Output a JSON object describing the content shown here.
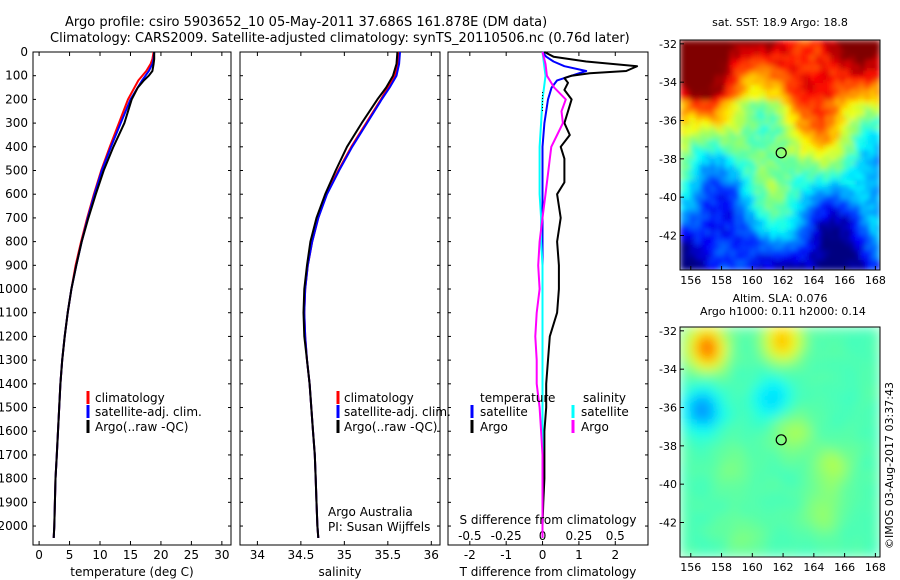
{
  "header": {
    "title_line1": "Argo profile: csiro 5903652_10 05-May-2011 37.686S 161.878E (DM data)",
    "title_line2": "Climatology: CARS2009. Satellite-adjusted climatology: synTS_20110506.nc (0.76d later)"
  },
  "footer": {
    "credit": "Argo Australia",
    "pi": "PI: Susan Wijffels",
    "stamp": "©IMOS 03-Aug-2017 03:37:43"
  },
  "colors": {
    "climatology": "#ff0000",
    "satellite": "#0000ff",
    "argo": "#000000",
    "salinity_satellite": "#00ffff",
    "salinity_argo": "#ff00ff"
  },
  "chart_data": [
    {
      "id": "temperature",
      "type": "line",
      "xlabel": "temperature (deg C)",
      "ylabel": "",
      "xlim": [
        -1,
        31.5
      ],
      "ylim": [
        0,
        2080
      ],
      "y_inverted": true,
      "xticks": [
        0,
        5,
        10,
        15,
        20,
        25,
        30
      ],
      "xtick_labels": [
        "0",
        "5",
        "10",
        "15",
        "20",
        "25",
        "30"
      ],
      "yticks": [
        0,
        100,
        200,
        300,
        400,
        500,
        600,
        700,
        800,
        900,
        1000,
        1100,
        1200,
        1300,
        1400,
        1500,
        1600,
        1700,
        1800,
        1900,
        2000
      ],
      "ytick_labels": [
        "0",
        "100",
        "200",
        "300",
        "400",
        "500",
        "600",
        "700",
        "800",
        "900",
        "1000",
        "1100",
        "1200",
        "1300",
        "1400",
        "1500",
        "1600",
        "1700",
        "1800",
        "1900",
        "2000"
      ],
      "legend": [
        "climatology",
        "satellite-adj. clim.",
        "Argo(..raw -QC)"
      ],
      "series": [
        {
          "name": "climatology",
          "color": "#ff0000",
          "depth": [
            0,
            30,
            50,
            80,
            120,
            200,
            300,
            400,
            500,
            600,
            700,
            800,
            900,
            1000,
            1100,
            1200,
            1300,
            1400,
            1500,
            1600,
            1700,
            1800,
            1900,
            2000,
            2050
          ],
          "values": [
            18.8,
            18.6,
            18.3,
            17.6,
            16.3,
            14.6,
            13.1,
            11.6,
            10.2,
            9.0,
            7.9,
            6.9,
            6.0,
            5.3,
            4.7,
            4.2,
            3.8,
            3.5,
            3.3,
            3.1,
            2.9,
            2.7,
            2.6,
            2.5,
            2.4
          ]
        },
        {
          "name": "satellite-adj. clim.",
          "color": "#0000ff",
          "depth": [
            0,
            30,
            50,
            80,
            120,
            200,
            300,
            400,
            500,
            600,
            700,
            800,
            900,
            1000,
            1100,
            1200,
            1300,
            1400,
            1500,
            1600,
            1700,
            1800,
            1900,
            2000,
            2050
          ],
          "values": [
            18.9,
            18.8,
            18.6,
            18.0,
            16.9,
            15.0,
            13.4,
            11.8,
            10.3,
            9.1,
            8.0,
            7.0,
            6.1,
            5.3,
            4.7,
            4.2,
            3.8,
            3.5,
            3.3,
            3.1,
            2.9,
            2.7,
            2.6,
            2.5,
            2.4
          ]
        },
        {
          "name": "Argo(..raw -QC)",
          "color": "#000000",
          "depth": [
            0,
            30,
            50,
            80,
            100,
            120,
            150,
            200,
            300,
            400,
            500,
            600,
            700,
            800,
            900,
            1000,
            1100,
            1200,
            1300,
            1400,
            1500,
            1600,
            1700,
            1800,
            1900,
            2000,
            2050
          ],
          "values": [
            18.9,
            18.9,
            18.8,
            18.6,
            18.0,
            17.2,
            16.2,
            15.2,
            14.0,
            12.2,
            10.6,
            9.3,
            8.1,
            7.0,
            6.1,
            5.3,
            4.7,
            4.2,
            3.8,
            3.5,
            3.3,
            3.1,
            2.9,
            2.7,
            2.6,
            2.5,
            2.4
          ]
        }
      ]
    },
    {
      "id": "salinity",
      "type": "line",
      "xlabel": "salinity",
      "ylabel": "",
      "xlim": [
        33.8,
        36.1
      ],
      "ylim": [
        0,
        2080
      ],
      "y_inverted": true,
      "xticks": [
        34,
        34.5,
        35,
        35.5,
        36
      ],
      "xtick_labels": [
        "34",
        "34.5",
        "35",
        "35.5",
        "36"
      ],
      "legend": [
        "climatology",
        "satellite-adj. clim.",
        "Argo(..raw -QC)"
      ],
      "series": [
        {
          "name": "climatology",
          "color": "#ff0000",
          "depth": [
            0,
            50,
            100,
            150,
            200,
            300,
            400,
            500,
            600,
            700,
            800,
            900,
            1000,
            1100,
            1200,
            1300,
            1400,
            1500,
            1600,
            1700,
            1800,
            1900,
            2000,
            2050
          ],
          "values": [
            35.62,
            35.62,
            35.58,
            35.5,
            35.42,
            35.25,
            35.08,
            34.93,
            34.79,
            34.7,
            34.63,
            34.58,
            34.55,
            34.54,
            34.55,
            34.57,
            34.6,
            34.62,
            34.64,
            34.66,
            34.67,
            34.68,
            34.69,
            34.7
          ]
        },
        {
          "name": "satellite-adj. clim.",
          "color": "#0000ff",
          "depth": [
            0,
            50,
            100,
            150,
            200,
            300,
            400,
            500,
            600,
            700,
            800,
            900,
            1000,
            1100,
            1200,
            1300,
            1400,
            1500,
            1600,
            1700,
            1800,
            1900,
            2000,
            2050
          ],
          "values": [
            35.64,
            35.63,
            35.6,
            35.52,
            35.43,
            35.26,
            35.09,
            34.94,
            34.8,
            34.7,
            34.63,
            34.58,
            34.55,
            34.54,
            34.55,
            34.57,
            34.6,
            34.62,
            34.64,
            34.66,
            34.67,
            34.68,
            34.69,
            34.7
          ]
        },
        {
          "name": "Argo(..raw -QC)",
          "color": "#000000",
          "depth": [
            0,
            50,
            100,
            150,
            200,
            300,
            400,
            500,
            600,
            700,
            800,
            900,
            1000,
            1100,
            1200,
            1300,
            1400,
            1500,
            1600,
            1700,
            1800,
            1900,
            2000,
            2050
          ],
          "values": [
            35.61,
            35.6,
            35.56,
            35.48,
            35.38,
            35.2,
            35.03,
            34.9,
            34.78,
            34.68,
            34.61,
            34.57,
            34.54,
            34.53,
            34.54,
            34.57,
            34.6,
            34.62,
            34.64,
            34.66,
            34.67,
            34.68,
            34.69,
            34.7
          ]
        }
      ]
    },
    {
      "id": "differences",
      "type": "line",
      "xlabel": "T difference from climatology",
      "xlabel_top": "S difference from climatology",
      "xlim": [
        -2.6,
        2.9
      ],
      "ylim": [
        0,
        2080
      ],
      "y_inverted": true,
      "xticks": [
        -2,
        -1,
        0,
        1,
        2
      ],
      "xtick_labels": [
        "-2",
        "-1",
        "0",
        "1",
        "2"
      ],
      "s_ticks": [
        -0.5,
        -0.25,
        0,
        0.25,
        0.5
      ],
      "s_tick_labels": [
        "-0.5",
        "-0.25",
        "0",
        "0.25",
        "0.5"
      ],
      "legend_temperature_title": "temperature",
      "legend_salinity_title": "salinity",
      "legend_temperature": [
        "satellite",
        "Argo"
      ],
      "legend_salinity": [
        "satellite",
        "Argo"
      ],
      "series": [
        {
          "name": "temperature satellite",
          "color": "#0000ff",
          "depth": [
            0,
            20,
            40,
            60,
            80,
            100,
            120,
            150,
            200,
            300,
            400,
            500,
            600,
            700,
            800,
            900,
            1000,
            1200,
            1400,
            1600,
            1800,
            2050
          ],
          "values": [
            0,
            0.1,
            0.3,
            0.6,
            1.2,
            0.8,
            0.4,
            0.25,
            0.15,
            0.05,
            0.0,
            0.0,
            0.0,
            0.0,
            0.0,
            0.0,
            0.0,
            0.0,
            0.0,
            0.0,
            0.0,
            0.0
          ]
        },
        {
          "name": "temperature Argo",
          "color": "#000000",
          "depth": [
            0,
            20,
            40,
            60,
            80,
            90,
            100,
            110,
            130,
            160,
            200,
            250,
            300,
            350,
            400,
            450,
            500,
            550,
            600,
            700,
            800,
            900,
            1000,
            1100,
            1200,
            1300,
            1400,
            1500,
            1600,
            1700,
            1800,
            1900,
            2000,
            2050
          ],
          "values": [
            0.05,
            0.3,
            1.2,
            2.6,
            2.3,
            1.3,
            0.8,
            0.6,
            0.7,
            0.6,
            0.8,
            0.7,
            0.6,
            0.75,
            0.5,
            0.6,
            0.6,
            0.6,
            0.4,
            0.5,
            0.4,
            0.45,
            0.45,
            0.4,
            0.2,
            0.15,
            0.1,
            0.1,
            0.05,
            0.05,
            0.05,
            0.02,
            0.0,
            0.0
          ]
        },
        {
          "name": "salinity satellite",
          "color": "#00ffff",
          "depth": [
            0,
            50,
            100,
            150,
            200,
            300,
            400,
            500,
            600,
            700,
            800,
            900,
            1000,
            1200,
            1400,
            1600,
            1800,
            2050
          ],
          "values": [
            0.0,
            0.01,
            0.02,
            0.01,
            0.0,
            -0.01,
            -0.02,
            -0.02,
            -0.02,
            -0.01,
            -0.01,
            0.0,
            0.0,
            0.0,
            0.0,
            0.0,
            0.0,
            0.0
          ]
        },
        {
          "name": "salinity Argo",
          "color": "#ff00ff",
          "depth": [
            0,
            50,
            100,
            150,
            200,
            250,
            300,
            350,
            400,
            450,
            500,
            600,
            700,
            800,
            900,
            1000,
            1100,
            1200,
            1300,
            1400,
            1500,
            1600,
            1700,
            1800,
            1900,
            2000,
            2050
          ],
          "values": [
            0.0,
            0.02,
            0.03,
            0.08,
            0.16,
            0.13,
            0.14,
            0.1,
            0.06,
            0.05,
            0.04,
            0.02,
            0.0,
            -0.02,
            -0.03,
            -0.02,
            -0.04,
            -0.05,
            -0.04,
            -0.04,
            -0.02,
            -0.01,
            0.0,
            0.0,
            0.0,
            0.0,
            0.0
          ]
        }
      ]
    },
    {
      "id": "sst_map",
      "type": "heatmap",
      "title": "sat. SST: 18.9 Argo: 18.8",
      "xlim": [
        155.3,
        168.3
      ],
      "ylim": [
        -43.8,
        -31.8
      ],
      "xticks": [
        156,
        158,
        160,
        162,
        164,
        166,
        168
      ],
      "xtick_labels": [
        "156",
        "158",
        "160",
        "162",
        "164",
        "166",
        "168"
      ],
      "yticks": [
        -32,
        -34,
        -36,
        -38,
        -40,
        -42
      ],
      "ytick_labels": [
        "-32",
        "-34",
        "-36",
        "-38",
        "-40",
        "-42"
      ],
      "marker": {
        "lon": 161.878,
        "lat": -37.686
      }
    },
    {
      "id": "sla_map",
      "type": "heatmap",
      "title_line1": "Altim. SLA: 0.076",
      "title_line2": "Argo h1000: 0.11 h2000: 0.14",
      "xlim": [
        155.3,
        168.3
      ],
      "ylim": [
        -43.8,
        -31.8
      ],
      "xticks": [
        156,
        158,
        160,
        162,
        164,
        166,
        168
      ],
      "xtick_labels": [
        "156",
        "158",
        "160",
        "162",
        "164",
        "166",
        "168"
      ],
      "yticks": [
        -32,
        -34,
        -36,
        -38,
        -40,
        -42
      ],
      "ytick_labels": [
        "-32",
        "-34",
        "-36",
        "-38",
        "-40",
        "-42"
      ],
      "marker": {
        "lon": 161.878,
        "lat": -37.686
      }
    }
  ]
}
